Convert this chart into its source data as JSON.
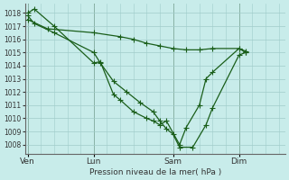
{
  "background_color": "#c8ecea",
  "grid_color": "#a0ccca",
  "line_color": "#1a5e1a",
  "xlabel": "Pression niveau de la mer( hPa )",
  "ylim": [
    1007.3,
    1018.7
  ],
  "yticks": [
    1008,
    1009,
    1010,
    1011,
    1012,
    1013,
    1014,
    1015,
    1016,
    1017,
    1018
  ],
  "xtick_labels": [
    "Ven",
    "Lun",
    "Sam",
    "Dim"
  ],
  "xtick_positions": [
    0,
    5,
    11,
    16
  ],
  "xlim": [
    -0.2,
    19.5
  ],
  "vlines": [
    0,
    5,
    11,
    16
  ],
  "series1_x": [
    0.0,
    0.5,
    2.0,
    5.0,
    5.5,
    6.5,
    7.0,
    8.0,
    9.0,
    9.5,
    10.0,
    10.5,
    11.5,
    12.0,
    13.0,
    13.5,
    14.0,
    16.0,
    16.5
  ],
  "series1_y": [
    1018.0,
    1018.3,
    1017.0,
    1014.2,
    1014.3,
    1011.8,
    1011.4,
    1010.5,
    1010.0,
    1009.8,
    1009.5,
    1009.8,
    1008.0,
    1009.3,
    1011.0,
    1013.0,
    1013.5,
    1015.3,
    1015.1
  ],
  "series2_x": [
    0.0,
    0.5,
    2.0,
    5.0,
    5.5,
    6.5,
    7.5,
    8.5,
    9.5,
    10.0,
    10.5,
    11.0,
    11.5,
    12.5,
    13.5,
    14.0,
    16.0,
    16.5
  ],
  "series2_y": [
    1017.8,
    1017.2,
    1016.5,
    1015.0,
    1014.2,
    1012.8,
    1012.0,
    1011.2,
    1010.5,
    1009.8,
    1009.2,
    1008.8,
    1007.8,
    1007.8,
    1009.5,
    1010.8,
    1014.8,
    1015.0
  ],
  "series3_x": [
    0.0,
    1.5,
    5.0,
    7.0,
    8.0,
    9.0,
    10.0,
    11.0,
    12.0,
    13.0,
    14.0,
    16.0,
    16.5
  ],
  "series3_y": [
    1017.5,
    1016.8,
    1016.5,
    1016.2,
    1016.0,
    1015.7,
    1015.5,
    1015.3,
    1015.2,
    1015.2,
    1015.3,
    1015.3,
    1015.0
  ]
}
